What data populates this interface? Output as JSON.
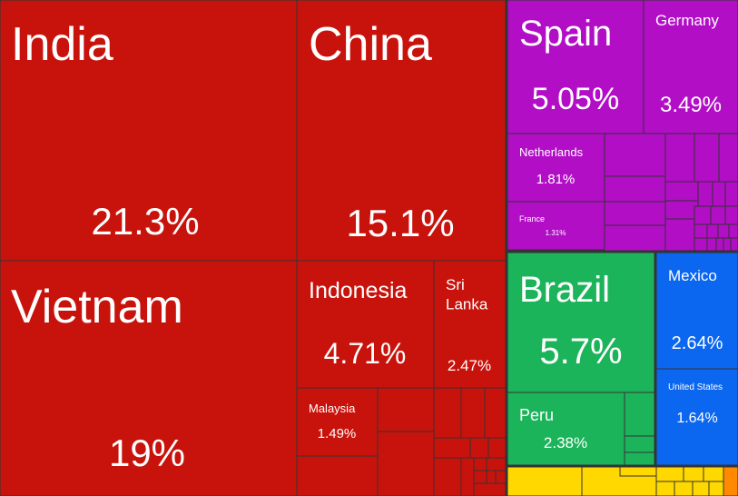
{
  "chart_data": {
    "type": "treemap",
    "colors": {
      "asia": "#c8130c",
      "europe": "#b20ec6",
      "south_america": "#1cb45a",
      "north_america": "#0b66f0",
      "africa": "#ffd800",
      "oceania": "#ff8a00"
    },
    "labeled_tiles": [
      {
        "label": "India",
        "value": "21.3%",
        "group": "asia"
      },
      {
        "label": "China",
        "value": "15.1%",
        "group": "asia"
      },
      {
        "label": "Vietnam",
        "value": "19%",
        "group": "asia"
      },
      {
        "label": "Indonesia",
        "value": "4.71%",
        "group": "asia"
      },
      {
        "label": "Sri\nLanka",
        "value": "2.47%",
        "group": "asia"
      },
      {
        "label": "Malaysia",
        "value": "1.49%",
        "group": "asia"
      },
      {
        "label": "Spain",
        "value": "5.05%",
        "group": "europe"
      },
      {
        "label": "Germany",
        "value": "3.49%",
        "group": "europe"
      },
      {
        "label": "Netherlands",
        "value": "1.81%",
        "group": "europe"
      },
      {
        "label": "France",
        "value": "1.31%",
        "group": "europe"
      },
      {
        "label": "Brazil",
        "value": "5.7%",
        "group": "south_america"
      },
      {
        "label": "Peru",
        "value": "2.38%",
        "group": "south_america"
      },
      {
        "label": "Mexico",
        "value": "2.64%",
        "group": "north_america"
      },
      {
        "label": "United States",
        "value": "1.64%",
        "group": "north_america"
      }
    ]
  }
}
